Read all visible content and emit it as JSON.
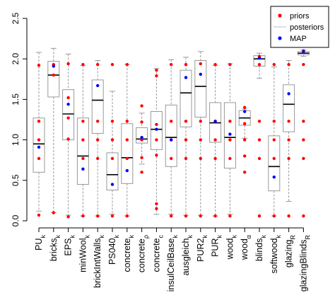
{
  "chart_data": {
    "type": "boxplot",
    "ylim": [
      0,
      2.5
    ],
    "yticks": [
      "0.0",
      "0.5",
      "1.0",
      "1.5",
      "2.0",
      "2.5"
    ],
    "grid": false,
    "legend": {
      "placement": "top-right",
      "entries": [
        {
          "label": "priors",
          "kind": "point",
          "color": "#ff0000"
        },
        {
          "label": "posteriors",
          "kind": "line",
          "color": "#bbbbbb"
        },
        {
          "label": "MAP",
          "kind": "point",
          "color": "#0000ff"
        }
      ]
    },
    "categories": [
      {
        "base": "PU",
        "sub": "k"
      },
      {
        "base": "bricks",
        "sub": "k"
      },
      {
        "base": "EPS",
        "sub": "k"
      },
      {
        "base": "minWool",
        "sub": "k"
      },
      {
        "base": "brickIntWalls",
        "sub": "k"
      },
      {
        "base": "PS040",
        "sub": "k"
      },
      {
        "base": "concrete",
        "sub": "k"
      },
      {
        "base": "concrete",
        "sub": "ρ"
      },
      {
        "base": "concrete",
        "sub": "c"
      },
      {
        "base": "insulCeilBase",
        "sub": "k"
      },
      {
        "base": "ausgleich",
        "sub": "k"
      },
      {
        "base": "PUR2",
        "sub": "k"
      },
      {
        "base": "PUR",
        "sub": "k"
      },
      {
        "base": "wood",
        "sub": "k"
      },
      {
        "base": "wood",
        "sub": "α"
      },
      {
        "base": "blinds",
        "sub": "k"
      },
      {
        "base": "softwood",
        "sub": "k"
      },
      {
        "base": "glazing",
        "sub": "R"
      },
      {
        "base": "glazingBlinds",
        "sub": "R"
      }
    ],
    "boxes": [
      {
        "whisker_low": 0.12,
        "q1": 0.6,
        "median": 0.95,
        "q3": 1.27,
        "whisker_high": 2.08
      },
      {
        "whisker_low": 0.1,
        "q1": 1.53,
        "median": 1.8,
        "q3": 1.97,
        "whisker_high": 2.13
      },
      {
        "whisker_low": 0.07,
        "q1": 1.0,
        "median": 1.32,
        "q3": 1.62,
        "whisker_high": 2.06
      },
      {
        "whisker_low": 0.06,
        "q1": 0.45,
        "median": 0.8,
        "q3": 1.27,
        "whisker_high": 1.92
      },
      {
        "whisker_low": 0.06,
        "q1": 1.08,
        "median": 1.49,
        "q3": 1.74,
        "whisker_high": 1.98
      },
      {
        "whisker_low": 0.08,
        "q1": 0.38,
        "median": 0.57,
        "q3": 0.84,
        "whisker_high": 1.6
      },
      {
        "whisker_low": 0.06,
        "q1": 0.46,
        "median": 0.78,
        "q3": 1.2,
        "whisker_high": 1.93
      },
      {
        "whisker_low": 0.7,
        "q1": 0.96,
        "median": 1.01,
        "q3": 1.15,
        "whisker_high": 1.33
      },
      {
        "whisker_low": 0.08,
        "q1": 0.88,
        "median": 1.13,
        "q3": 1.35,
        "whisker_high": 1.88
      },
      {
        "whisker_low": 0.08,
        "q1": 0.67,
        "median": 1.03,
        "q3": 1.43,
        "whisker_high": 1.99
      },
      {
        "whisker_low": 0.07,
        "q1": 1.16,
        "median": 1.58,
        "q3": 1.86,
        "whisker_high": 2.02
      },
      {
        "whisker_low": 0.07,
        "q1": 1.28,
        "median": 1.66,
        "q3": 1.98,
        "whisker_high": 2.09
      },
      {
        "whisker_low": 0.06,
        "q1": 0.97,
        "median": 1.21,
        "q3": 1.46,
        "whisker_high": 1.92
      },
      {
        "whisker_low": 0.08,
        "q1": 0.65,
        "median": 1.03,
        "q3": 1.46,
        "whisker_high": 1.94
      },
      {
        "whisker_low": 1.02,
        "q1": 1.18,
        "median": 1.27,
        "q3": 1.36,
        "whisker_high": 1.38
      },
      {
        "whisker_low": 1.76,
        "q1": 1.91,
        "median": 2.0,
        "q3": 2.04,
        "whisker_high": 2.07
      },
      {
        "whisker_low": 0.06,
        "q1": 0.37,
        "median": 0.67,
        "q3": 1.05,
        "whisker_high": 1.9
      },
      {
        "whisker_low": 0.24,
        "q1": 1.1,
        "median": 1.44,
        "q3": 1.68,
        "whisker_high": 1.98
      },
      {
        "whisker_low": 2.03,
        "q1": 2.05,
        "median": 2.07,
        "q3": 2.09,
        "whisker_high": 2.11
      }
    ],
    "priors": [
      [
        0.07,
        0.77,
        1.0,
        1.23,
        1.92
      ],
      [
        0.1,
        1.8,
        1.93
      ],
      [
        0.05,
        1.01,
        1.27,
        1.52,
        1.94
      ],
      [
        0.06,
        0.77,
        1.0,
        1.23,
        1.93
      ],
      [
        0.06,
        0.77,
        1.0,
        1.23,
        1.93
      ],
      [
        0.06,
        0.77,
        1.0,
        1.23,
        1.93
      ],
      [
        0.06,
        0.77,
        1.0,
        1.23,
        1.93
      ],
      [
        0.6,
        0.78,
        1.0,
        1.22,
        1.42
      ],
      [
        0.15,
        0.21,
        0.81,
        1.0,
        1.19,
        1.79,
        1.86
      ],
      [
        0.06,
        0.77,
        1.0,
        1.23,
        1.93
      ],
      [
        0.06,
        0.77,
        1.0,
        1.23,
        1.93
      ],
      [
        0.06,
        0.77,
        1.0,
        1.23,
        1.94
      ],
      [
        0.06,
        0.77,
        1.0,
        1.23,
        1.93
      ],
      [
        0.06,
        0.77,
        1.0,
        1.23,
        1.93
      ],
      [
        0.6,
        0.8,
        1.0,
        1.2,
        1.4
      ],
      [
        0.06,
        0.77,
        1.0,
        1.23,
        1.93,
        2.03
      ],
      [
        0.06,
        0.77,
        1.0,
        1.23,
        1.93
      ],
      [
        0.06,
        0.77,
        1.0,
        1.23,
        1.93
      ],
      [
        0.06,
        0.77,
        1.0,
        1.23,
        1.93,
        2.1
      ]
    ],
    "map": [
      0.91,
      1.91,
      1.44,
      0.64,
      1.67,
      0.45,
      0.62,
      1.03,
      1.13,
      1.0,
      1.77,
      1.81,
      1.23,
      1.07,
      1.35,
      2.01,
      0.54,
      1.57,
      2.09
    ]
  }
}
